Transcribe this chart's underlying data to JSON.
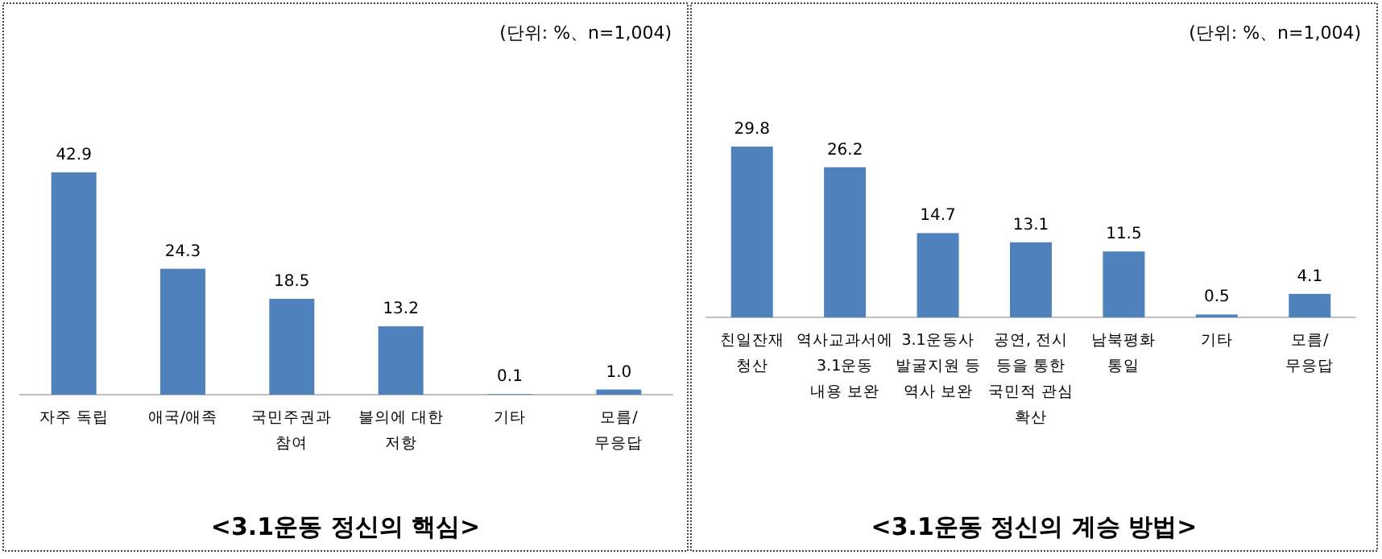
{
  "chart_data": [
    {
      "type": "bar",
      "title": "<3.1운동 정신의 핵심>",
      "subtitle": "(단위: %、n=1,004)",
      "categories": [
        "자주 독립",
        "애국/애족",
        "국민주권과\n참여",
        "불의에 대한\n저항",
        "기타",
        "모름/\n무응답"
      ],
      "values": [
        42.9,
        24.3,
        18.5,
        13.2,
        0.1,
        1.0
      ],
      "value_labels": [
        "42.9",
        "24.3",
        "18.5",
        "13.2",
        "0.1",
        "1.0"
      ],
      "color": "#4f81bd"
    },
    {
      "type": "bar",
      "title": "<3.1운동 정신의 계승 방법>",
      "subtitle": "(단위: %、n=1,004)",
      "categories": [
        "친일잔재\n청산",
        "역사교과서에\n3.1운동\n내용 보완",
        "3.1운동사\n발굴지원 등\n역사 보완",
        "공연, 전시\n등을 통한\n국민적 관심\n확산",
        "남북평화\n통일",
        "기타",
        "모름/\n무응답"
      ],
      "values": [
        29.8,
        26.2,
        14.7,
        13.1,
        11.5,
        0.5,
        4.1
      ],
      "color": "#4f81bd",
      "data_labels": true
    }
  ]
}
